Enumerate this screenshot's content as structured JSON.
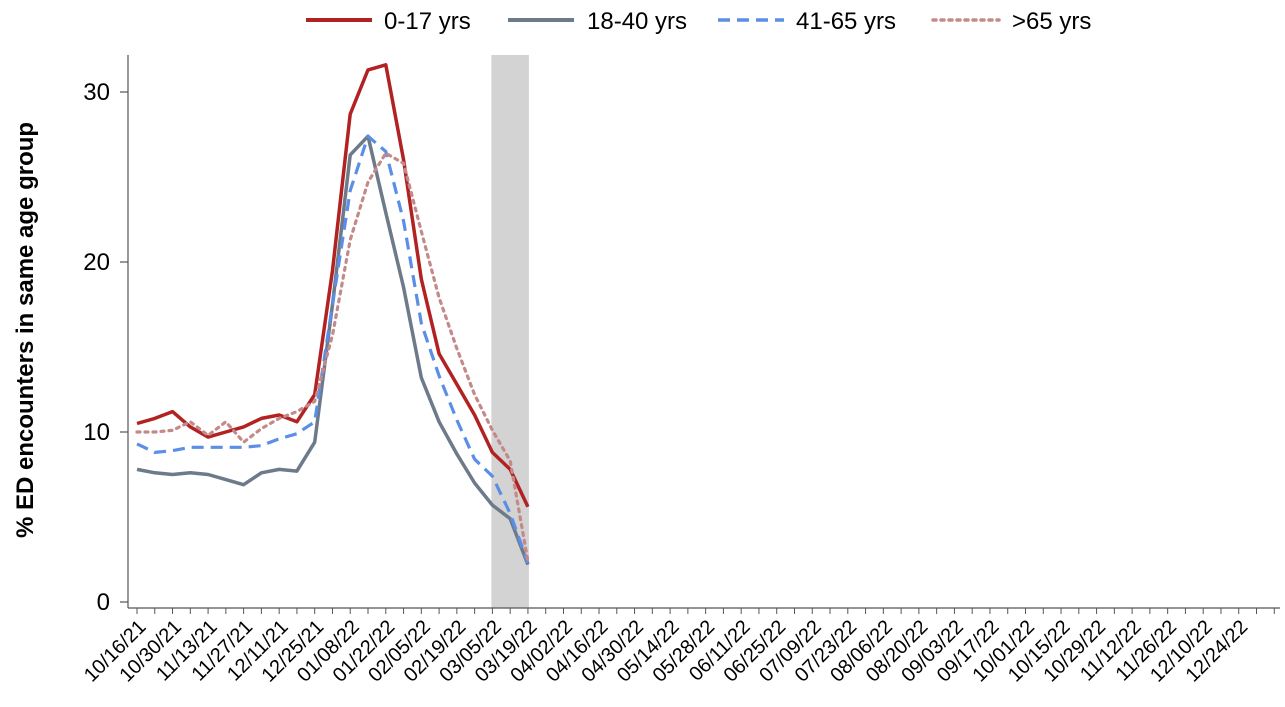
{
  "chart_data": {
    "type": "line",
    "ylabel": "% ED encounters in same age group",
    "xlabel": "",
    "ylim": [
      0,
      32
    ],
    "yticks": [
      0,
      10,
      20,
      30
    ],
    "legend_position": "top",
    "grid": false,
    "highlight_band": {
      "x_start": "03/05/22",
      "x_end": "03/19/22",
      "color": "#d3d3d3"
    },
    "x": [
      "10/16/21",
      "10/23/21",
      "10/30/21",
      "11/06/21",
      "11/13/21",
      "11/20/21",
      "11/27/21",
      "12/04/21",
      "12/11/21",
      "12/18/21",
      "12/25/21",
      "01/01/22",
      "01/08/22",
      "01/15/22",
      "01/22/22",
      "01/29/22",
      "02/05/22",
      "02/12/22",
      "02/19/22",
      "02/26/22",
      "03/05/22",
      "03/12/22",
      "03/19/22"
    ],
    "xtick_labels": [
      "10/16/21",
      "10/30/21",
      "11/13/21",
      "11/27/21",
      "12/11/21",
      "12/25/21",
      "01/08/22",
      "01/22/22",
      "02/05/22",
      "02/19/22",
      "03/05/22",
      "03/19/22",
      "04/02/22",
      "04/16/22",
      "04/30/22",
      "05/14/22",
      "05/28/22",
      "06/11/22",
      "06/25/22",
      "07/09/22",
      "07/23/22",
      "08/06/22",
      "08/20/22",
      "09/03/22",
      "09/17/22",
      "10/01/22",
      "10/15/22",
      "10/29/22",
      "11/12/22",
      "11/26/22",
      "12/10/22",
      "12/24/22"
    ],
    "series": [
      {
        "name": "0-17 yrs",
        "color": "#b22222",
        "dash": "solid",
        "values": [
          10.5,
          10.8,
          11.2,
          10.3,
          9.7,
          10.0,
          10.3,
          10.8,
          11.0,
          10.6,
          12.2,
          19.5,
          28.7,
          31.3,
          31.6,
          26.0,
          19.0,
          14.6,
          12.8,
          11.0,
          8.8,
          7.8,
          5.6
        ]
      },
      {
        "name": "18-40 yrs",
        "color": "#6c7a89",
        "dash": "solid",
        "values": [
          7.8,
          7.6,
          7.5,
          7.6,
          7.5,
          7.2,
          6.9,
          7.6,
          7.8,
          7.7,
          9.4,
          17.5,
          26.3,
          27.4,
          22.9,
          18.5,
          13.2,
          10.6,
          8.7,
          7.0,
          5.7,
          4.9,
          2.2
        ]
      },
      {
        "name": "41-65 yrs",
        "color": "#5b8ee6",
        "dash": "dashed",
        "values": [
          9.3,
          8.8,
          8.9,
          9.1,
          9.1,
          9.1,
          9.1,
          9.2,
          9.6,
          9.9,
          10.6,
          17.5,
          24.2,
          27.4,
          26.5,
          22.4,
          16.4,
          13.3,
          10.7,
          8.4,
          7.4,
          5.2,
          2.3
        ]
      },
      {
        "name": ">65 yrs",
        "color": "#c48a8a",
        "dash": "dotted",
        "values": [
          10.0,
          10.0,
          10.1,
          10.6,
          9.8,
          10.6,
          9.4,
          10.2,
          10.8,
          11.2,
          11.8,
          15.7,
          21.3,
          24.7,
          26.4,
          25.8,
          21.8,
          17.9,
          14.9,
          12.2,
          10.1,
          8.3,
          2.4
        ]
      }
    ]
  }
}
